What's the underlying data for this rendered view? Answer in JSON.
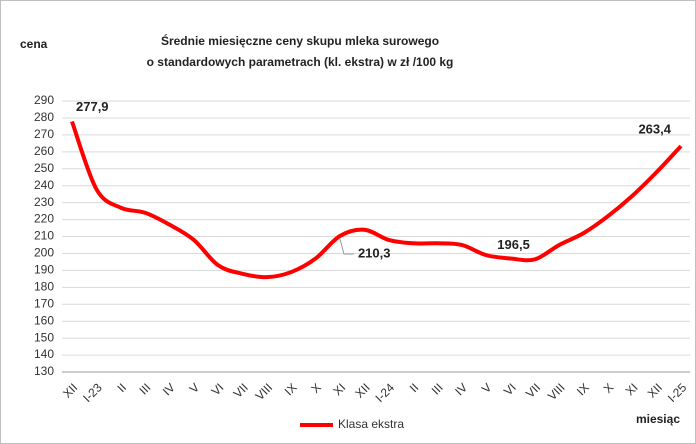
{
  "chart_data": {
    "type": "line",
    "title": [
      "Średnie miesięczne ceny skupu mleka surowego",
      "o standardowych parametrach (kl. ekstra) w zł /100 kg"
    ],
    "y_label": "cena",
    "x_label": "miesiąc",
    "categories": [
      "XII",
      "I-23",
      "II",
      "III",
      "IV",
      "V",
      "VI",
      "VII",
      "VIII",
      "IX",
      "X",
      "XI",
      "XII",
      "I-24",
      "II",
      "III",
      "IV",
      "V",
      "VI",
      "VII",
      "VIII",
      "IX",
      "X",
      "XI",
      "XII",
      "I-25"
    ],
    "series": [
      {
        "name": "Klasa ekstra",
        "color": "#ff0000",
        "values": [
          277.9,
          238,
          227,
          224,
          217,
          208,
          193,
          188,
          186,
          189,
          197,
          210.3,
          214,
          208,
          206,
          206,
          205,
          199,
          197,
          196.5,
          205,
          212,
          222,
          234,
          248,
          263.4
        ],
        "value_labels": [
          "277,9",
          null,
          null,
          null,
          null,
          null,
          null,
          null,
          null,
          null,
          null,
          "210,3",
          null,
          null,
          null,
          null,
          null,
          null,
          null,
          "196,5",
          null,
          null,
          null,
          null,
          null,
          "263,4"
        ]
      }
    ],
    "ylim": [
      130,
      290
    ],
    "yticks": [
      130,
      140,
      150,
      160,
      170,
      180,
      190,
      200,
      210,
      220,
      230,
      240,
      250,
      260,
      270,
      280,
      290
    ],
    "grid": true,
    "legend": "bottom"
  }
}
